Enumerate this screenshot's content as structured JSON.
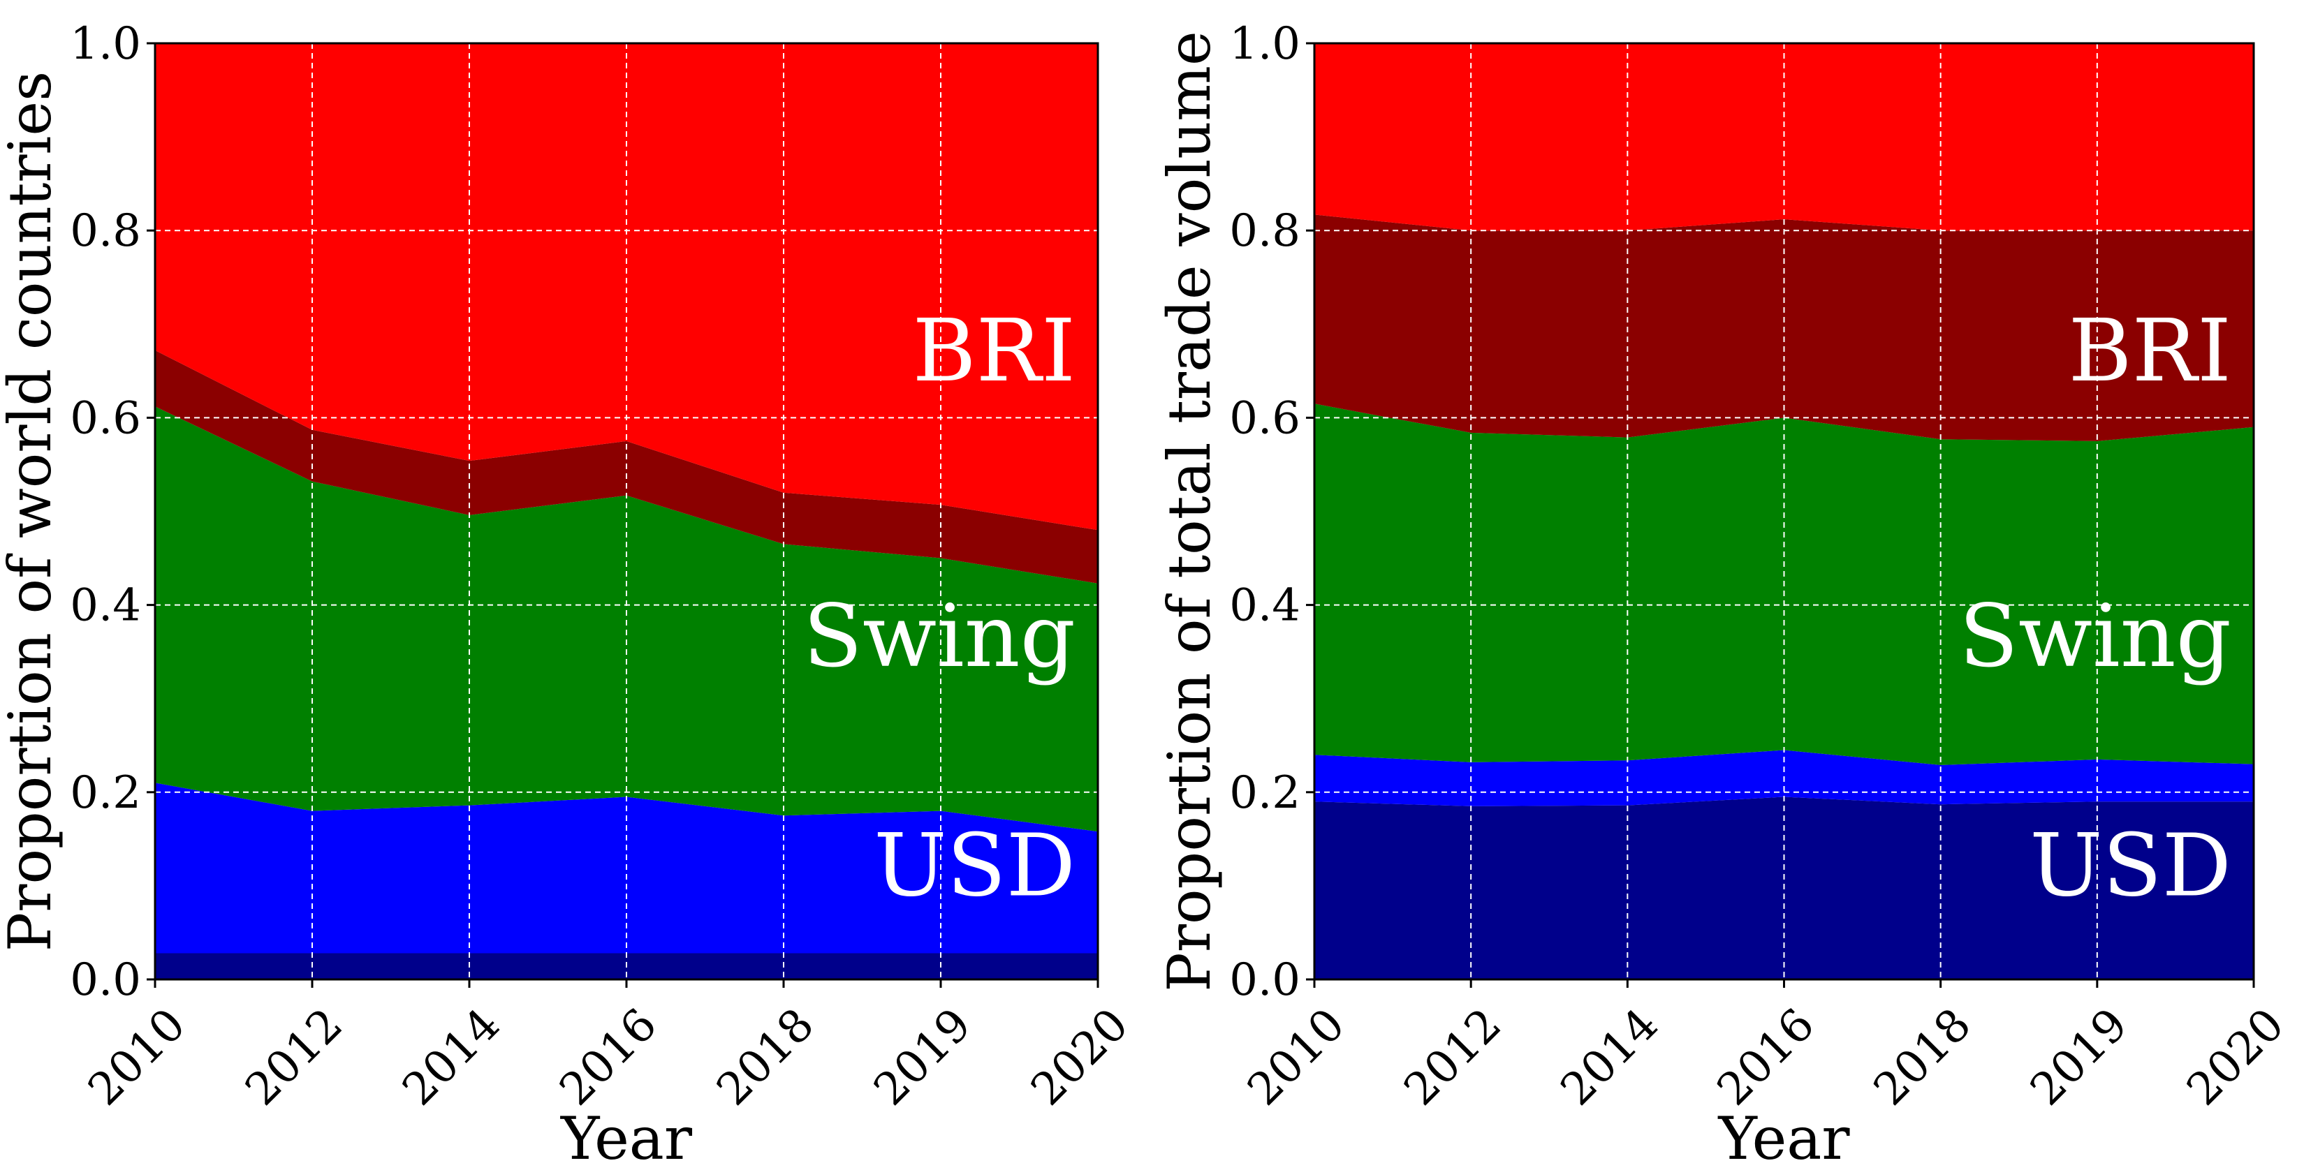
{
  "chart_data": [
    {
      "type": "area",
      "stacked": true,
      "x": [
        "2010",
        "2012",
        "2014",
        "2016",
        "2018",
        "2019",
        "2020"
      ],
      "xlabel": "Year",
      "ylabel": "Proportion of world countries",
      "ylim": [
        0,
        1
      ],
      "yticks": [
        "0.0",
        "0.2",
        "0.4",
        "0.6",
        "0.8",
        "1.0"
      ],
      "grid": true,
      "layers": [
        {
          "color": "#00008b",
          "values": [
            0.028,
            0.028,
            0.028,
            0.028,
            0.028,
            0.028,
            0.028
          ]
        },
        {
          "color": "#0000ff",
          "values": [
            0.182,
            0.152,
            0.158,
            0.167,
            0.147,
            0.152,
            0.13
          ]
        },
        {
          "color": "#008000",
          "values": [
            0.402,
            0.352,
            0.31,
            0.322,
            0.29,
            0.27,
            0.265
          ]
        },
        {
          "color": "#8b0000",
          "values": [
            0.06,
            0.055,
            0.058,
            0.058,
            0.055,
            0.057,
            0.057
          ]
        },
        {
          "color": "#ff0000",
          "values": [
            0.328,
            0.413,
            0.446,
            0.425,
            0.48,
            0.493,
            0.52
          ]
        }
      ],
      "labels": [
        {
          "text": "BRI",
          "y": 0.64
        },
        {
          "text": "Swing",
          "y": 0.335
        },
        {
          "text": "USD",
          "y": 0.09
        }
      ]
    },
    {
      "type": "area",
      "stacked": true,
      "x": [
        "2010",
        "2012",
        "2014",
        "2016",
        "2018",
        "2019",
        "2020"
      ],
      "xlabel": "Year",
      "ylabel": "Proportion of total trade volume",
      "ylim": [
        0,
        1
      ],
      "yticks": [
        "0.0",
        "0.2",
        "0.4",
        "0.6",
        "0.8",
        "1.0"
      ],
      "grid": true,
      "layers": [
        {
          "color": "#00008b",
          "values": [
            0.19,
            0.185,
            0.186,
            0.195,
            0.187,
            0.19,
            0.19
          ]
        },
        {
          "color": "#0000ff",
          "values": [
            0.05,
            0.047,
            0.048,
            0.05,
            0.042,
            0.045,
            0.04
          ]
        },
        {
          "color": "#008000",
          "values": [
            0.375,
            0.352,
            0.345,
            0.355,
            0.348,
            0.34,
            0.36
          ]
        },
        {
          "color": "#8b0000",
          "values": [
            0.202,
            0.216,
            0.221,
            0.212,
            0.223,
            0.225,
            0.21
          ]
        },
        {
          "color": "#ff0000",
          "values": [
            0.183,
            0.2,
            0.2,
            0.188,
            0.2,
            0.2,
            0.2
          ]
        }
      ],
      "labels": [
        {
          "text": "BRI",
          "y": 0.64
        },
        {
          "text": "Swing",
          "y": 0.335
        },
        {
          "text": "USD",
          "y": 0.09
        }
      ]
    }
  ]
}
